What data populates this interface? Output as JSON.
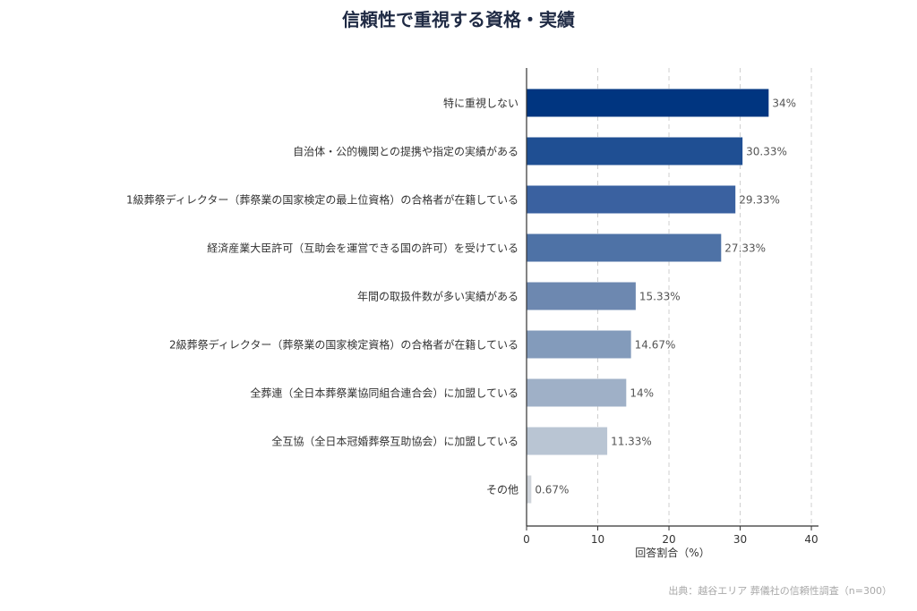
{
  "chart_data": {
    "type": "bar",
    "orientation": "horizontal",
    "title": "信頼性で重視する資格・実績",
    "xlabel": "回答割合（%）",
    "xlim": [
      0,
      41
    ],
    "xticks": [
      0,
      10,
      20,
      30,
      40
    ],
    "grid": "x-dashed",
    "categories": [
      "特に重視しない",
      "自治体・公的機関との提携や指定の実績がある",
      "1級葬祭ディレクター（葬祭業の国家検定の最上位資格）の合格者が在籍している",
      "経済産業大臣許可（互助会を運営できる国の許可）を受けている",
      "年間の取扱件数が多い実績がある",
      "2級葬祭ディレクター（葬祭業の国家検定資格）の合格者が在籍している",
      "全葬連（全日本葬祭業協同組合連合会）に加盟している",
      "全互協（全日本冠婚葬祭互助協会）に加盟している",
      "その他"
    ],
    "values": [
      34,
      30.33,
      29.33,
      27.33,
      15.33,
      14.67,
      14,
      11.33,
      0.67
    ],
    "value_labels": [
      "34%",
      "30.33%",
      "29.33%",
      "27.33%",
      "15.33%",
      "14.67%",
      "14%",
      "11.33%",
      "0.67%"
    ],
    "bar_colors": [
      "#003580",
      "#1f4f93",
      "#3a61a0",
      "#4e72a6",
      "#6d88b0",
      "#839bbb",
      "#9fb0c7",
      "#b9c5d3",
      "#d0d5db"
    ]
  },
  "source": "出典：越谷エリア 葬儀社の信頼性調査（n=300）"
}
